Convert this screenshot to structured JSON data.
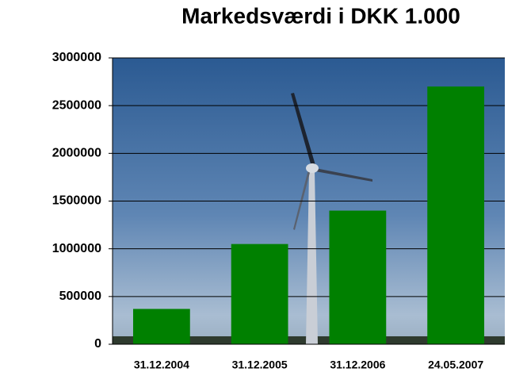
{
  "chart_data": {
    "type": "bar",
    "title": "Markedsværdi i DKK 1.000",
    "categories": [
      "31.12.2004",
      "31.12.2005",
      "31.12.2006",
      "24.05.2007"
    ],
    "values": [
      370000,
      1050000,
      1400000,
      2700000
    ],
    "color": "#008000",
    "ylim": [
      0,
      3000000
    ],
    "yticks": [
      0,
      500000,
      1000000,
      1500000,
      2000000,
      2500000,
      3000000
    ],
    "grid": true
  }
}
